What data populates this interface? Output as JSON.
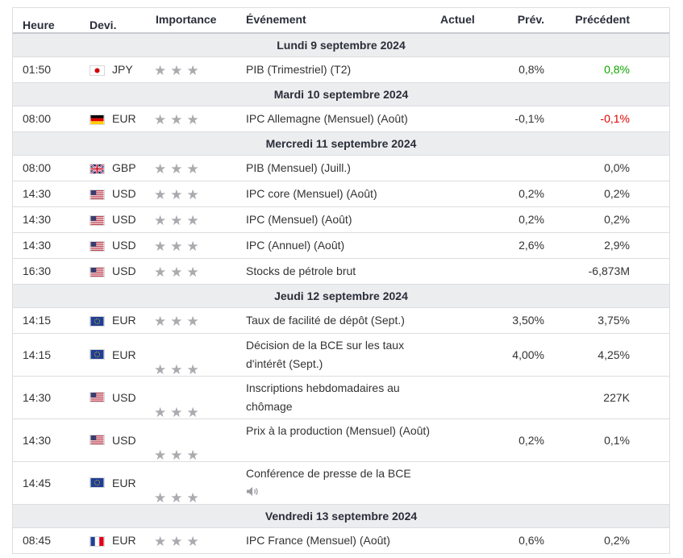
{
  "header": {
    "time": "Heure",
    "currency": "Devi.",
    "importance": "Importance",
    "event": "Événement",
    "actual": "Actuel",
    "forecast": "Prév.",
    "previous": "Précédent"
  },
  "colors": {
    "positive": "#0ea600",
    "negative": "#e00000",
    "star": "#a9abaf"
  },
  "days": [
    {
      "label": "Lundi 9 septembre 2024",
      "events": [
        {
          "time": "01:50",
          "flag": "jp-flag-icon",
          "currency": "JPY",
          "event": "PIB (Trimestriel) (T2)",
          "actual": "",
          "forecast": "0,8%",
          "previous": "0,8%",
          "previous_color": "positive"
        }
      ]
    },
    {
      "label": "Mardi 10 septembre 2024",
      "events": [
        {
          "time": "08:00",
          "flag": "de-flag-icon",
          "currency": "EUR",
          "event": "IPC Allemagne (Mensuel) (Août)",
          "actual": "",
          "forecast": "-0,1%",
          "previous": "-0,1%",
          "previous_color": "negative"
        }
      ]
    },
    {
      "label": "Mercredi 11 septembre 2024",
      "events": [
        {
          "time": "08:00",
          "flag": "gb-flag-icon",
          "currency": "GBP",
          "event": "PIB (Mensuel) (Juill.)",
          "actual": "",
          "forecast": "",
          "previous": "0,0%"
        },
        {
          "time": "14:30",
          "flag": "us-flag-icon",
          "currency": "USD",
          "event": "IPC core (Mensuel) (Août)",
          "actual": "",
          "forecast": "0,2%",
          "previous": "0,2%"
        },
        {
          "time": "14:30",
          "flag": "us-flag-icon",
          "currency": "USD",
          "event": "IPC (Mensuel) (Août)",
          "actual": "",
          "forecast": "0,2%",
          "previous": "0,2%"
        },
        {
          "time": "14:30",
          "flag": "us-flag-icon",
          "currency": "USD",
          "event": "IPC (Annuel) (Août)",
          "actual": "",
          "forecast": "2,6%",
          "previous": "2,9%"
        },
        {
          "time": "16:30",
          "flag": "us-flag-icon",
          "currency": "USD",
          "event": "Stocks de pétrole brut",
          "actual": "",
          "forecast": "",
          "previous": "-6,873M"
        }
      ]
    },
    {
      "label": "Jeudi 12 septembre 2024",
      "events": [
        {
          "time": "14:15",
          "flag": "eu-flag-icon",
          "currency": "EUR",
          "event": "Taux de facilité de dépôt (Sept.)",
          "actual": "",
          "forecast": "3,50%",
          "previous": "3,75%"
        },
        {
          "time": "14:15",
          "flag": "eu-flag-icon",
          "currency": "EUR",
          "event": "Décision de la BCE sur les taux d'intérêt (Sept.)",
          "actual": "",
          "forecast": "4,00%",
          "previous": "4,25%",
          "tall": true
        },
        {
          "time": "14:30",
          "flag": "us-flag-icon",
          "currency": "USD",
          "event": "Inscriptions hebdomadaires au chômage",
          "actual": "",
          "forecast": "",
          "previous": "227K",
          "tall": true
        },
        {
          "time": "14:30",
          "flag": "us-flag-icon",
          "currency": "USD",
          "event": "Prix à la production (Mensuel) (Août)",
          "actual": "",
          "forecast": "0,2%",
          "previous": "0,1%",
          "tall": true
        },
        {
          "time": "14:45",
          "flag": "eu-flag-icon",
          "currency": "EUR",
          "event": "Conférence de presse de la BCE",
          "actual": "",
          "forecast": "",
          "previous": "",
          "tall": true,
          "speech": "speaker-icon"
        }
      ]
    },
    {
      "label": "Vendredi 13 septembre 2024",
      "events": [
        {
          "time": "08:45",
          "flag": "fr-flag-icon",
          "currency": "EUR",
          "event": "IPC France (Mensuel) (Août)",
          "actual": "",
          "forecast": "0,6%",
          "previous": "0,2%"
        }
      ]
    }
  ]
}
